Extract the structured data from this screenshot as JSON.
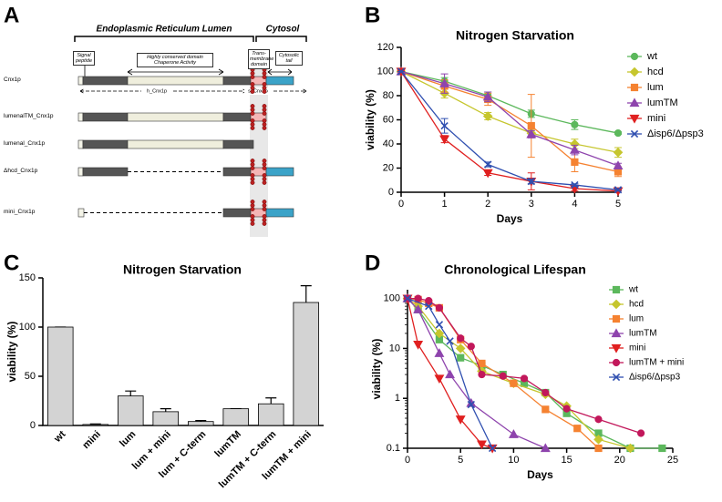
{
  "panel_labels": [
    "A",
    "B",
    "C",
    "D"
  ],
  "diagram": {
    "header_lumen": "Endoplasmic Reticulum Lumen",
    "header_cytosol": "Cytosol",
    "domains": [
      "Signal peptide",
      "Highly conserved domain Chaperone Activity",
      "Trans-membrane domain",
      "Cytosolic tail"
    ],
    "spans": [
      "h_Cnx1p",
      "s_Cnx1p"
    ],
    "constructs": [
      "Cnx1p",
      "lumenalTM_Cnx1p",
      "lumenal_Cnx1p",
      "Δhcd_Cnx1p",
      "mini_Cnx1p"
    ]
  },
  "chart_data": [
    {
      "type": "line",
      "title": "Nitrogen Starvation",
      "x_label": "Days",
      "y_label": "viability (%)",
      "x": [
        0,
        1,
        2,
        3,
        4,
        5
      ],
      "xlim": [
        0,
        5
      ],
      "xticks": [
        0,
        1,
        2,
        3,
        4,
        5
      ],
      "ylim": [
        0,
        120
      ],
      "yticks": [
        0,
        20,
        40,
        60,
        80,
        100,
        120
      ],
      "legend": "outside-right",
      "series": [
        {
          "name": "wt",
          "color": "#5cb85c",
          "marker": "circle",
          "values": [
            100,
            92,
            80,
            65,
            56,
            49
          ],
          "errors": [
            0,
            3,
            3,
            3,
            4,
            1
          ]
        },
        {
          "name": "hcd",
          "color": "#c6c62e",
          "marker": "diamond",
          "values": [
            100,
            82,
            63,
            49,
            40,
            33
          ],
          "errors": [
            0,
            4,
            3,
            3,
            4,
            4
          ]
        },
        {
          "name": "lum",
          "color": "#f58231",
          "marker": "square",
          "values": [
            100,
            88,
            77,
            55,
            25,
            17
          ],
          "errors": [
            0,
            5,
            5,
            26,
            8,
            4
          ]
        },
        {
          "name": "lumTM",
          "color": "#8e44ad",
          "marker": "triangle",
          "values": [
            100,
            90,
            79,
            48,
            35,
            22
          ],
          "errors": [
            0,
            8,
            4,
            3,
            4,
            2
          ]
        },
        {
          "name": "mini",
          "color": "#e02020",
          "marker": "triangle-down",
          "values": [
            100,
            44,
            16,
            9,
            3,
            1
          ],
          "errors": [
            0,
            3,
            2,
            7,
            2,
            1
          ]
        },
        {
          "name": "Δisp6/Δpsp3",
          "color": "#2f4fb0",
          "marker": "x",
          "values": [
            100,
            55,
            23,
            9,
            6,
            2
          ],
          "errors": [
            0,
            6,
            2,
            2,
            1,
            1
          ]
        }
      ]
    },
    {
      "type": "bar",
      "title": "Nitrogen Starvation",
      "y_label": "viability (%)",
      "categories": [
        "wt",
        "mini",
        "lum",
        "lum + mini",
        "lum + C-term",
        "lumTM",
        "lumTM + C-term",
        "lumTM + mini"
      ],
      "values": [
        100,
        1,
        30,
        14,
        4,
        17,
        22,
        125
      ],
      "errors": [
        0,
        0.5,
        5,
        3,
        1,
        0,
        6,
        17
      ],
      "color": "#d3d3d3",
      "ylim": [
        0,
        150
      ],
      "yticks": [
        0,
        50,
        100,
        150
      ]
    },
    {
      "type": "line",
      "title": "Chronological Lifespan",
      "x_label": "Days",
      "y_label": "viability (%)",
      "xlim": [
        0,
        25
      ],
      "xticks": [
        0,
        5,
        10,
        15,
        20,
        25
      ],
      "ylim": [
        0.1,
        150
      ],
      "yticks": [
        0.1,
        1,
        10,
        100
      ],
      "log_y": true,
      "legend": "upper-right",
      "series": [
        {
          "name": "wt",
          "color": "#5cb85c",
          "marker": "square",
          "x": [
            0,
            1,
            3,
            5,
            7,
            9,
            11,
            13,
            15,
            18,
            21,
            24
          ],
          "values": [
            100,
            60,
            15,
            6.5,
            4.5,
            3,
            2,
            1.3,
            0.5,
            0.2,
            0.1,
            0.1
          ]
        },
        {
          "name": "hcd",
          "color": "#c6c62e",
          "marker": "diamond",
          "x": [
            0,
            1,
            3,
            5,
            7,
            10,
            13,
            15,
            18,
            21
          ],
          "values": [
            100,
            70,
            20,
            10,
            3.5,
            2,
            1.2,
            0.7,
            0.15,
            0.1
          ]
        },
        {
          "name": "lum",
          "color": "#f58231",
          "marker": "square",
          "x": [
            0,
            1,
            2,
            3,
            5,
            7,
            10,
            13,
            16,
            18
          ],
          "values": [
            100,
            95,
            80,
            65,
            15,
            5,
            2,
            0.6,
            0.25,
            0.1
          ]
        },
        {
          "name": "lumTM",
          "color": "#8e44ad",
          "marker": "triangle",
          "x": [
            0,
            1,
            3,
            4,
            6,
            10,
            13
          ],
          "values": [
            100,
            60,
            8,
            3,
            0.8,
            0.19,
            0.1
          ]
        },
        {
          "name": "mini",
          "color": "#e02020",
          "marker": "triangle-down",
          "x": [
            0,
            1,
            3,
            5,
            7,
            8
          ],
          "values": [
            100,
            12,
            2.5,
            0.38,
            0.12,
            0.1
          ]
        },
        {
          "name": "lumTM + mini",
          "color": "#c2185b",
          "marker": "circle",
          "x": [
            0,
            1,
            2,
            3,
            5,
            6,
            7,
            9,
            11,
            13,
            15,
            18,
            22
          ],
          "values": [
            100,
            100,
            90,
            65,
            16,
            11,
            3,
            2.8,
            2.5,
            1.3,
            0.62,
            0.38,
            0.2
          ]
        },
        {
          "name": "Δisp6/Δpsp3",
          "color": "#2f4fb0",
          "marker": "x",
          "x": [
            0,
            2,
            3,
            4,
            6,
            8
          ],
          "values": [
            100,
            70,
            30,
            14,
            0.75,
            0.1
          ]
        }
      ]
    }
  ]
}
